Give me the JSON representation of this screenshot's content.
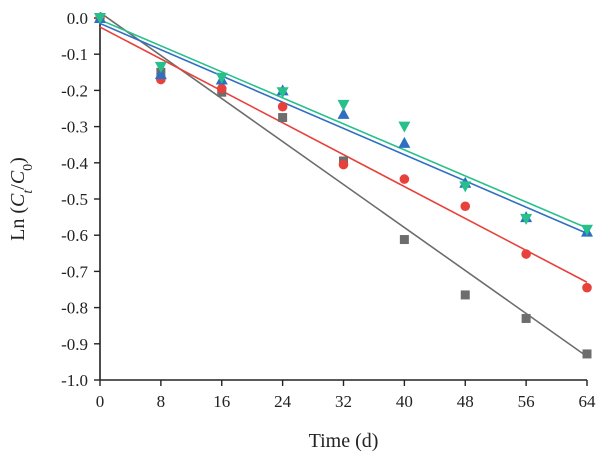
{
  "chart_data": {
    "type": "scatter",
    "title": "",
    "xlabel": "Time (d)",
    "ylabel": {
      "prefix": "Ln (",
      "c": "C",
      "t_sub": "t",
      "slash": "/",
      "c0": "C",
      "zero_sub": "0",
      "suffix": ")"
    },
    "xlim": [
      0,
      64
    ],
    "ylim": [
      -1.0,
      0.0
    ],
    "x_ticks": [
      0,
      8,
      16,
      24,
      32,
      40,
      48,
      56,
      64
    ],
    "x_tick_labels": [
      "0",
      "8",
      "16",
      "24",
      "32",
      "40",
      "48",
      "56",
      "64"
    ],
    "y_ticks": [
      0.0,
      -0.1,
      -0.2,
      -0.3,
      -0.4,
      -0.5,
      -0.6,
      -0.7,
      -0.8,
      -0.9,
      -1.0
    ],
    "y_tick_labels": [
      "0.0",
      "-0.1",
      "-0.2",
      "-0.3",
      "-0.4",
      "-0.5",
      "-0.6",
      "-0.7",
      "-0.8",
      "-0.9",
      "-1.0"
    ],
    "grid": false,
    "legend": "none",
    "series": [
      {
        "marker": "square",
        "color": "#6d6d6d",
        "x": [
          0,
          8,
          16,
          24,
          32,
          40,
          48,
          56,
          64
        ],
        "y": [
          0.0,
          -0.15,
          -0.205,
          -0.275,
          -0.395,
          -0.612,
          -0.765,
          -0.83,
          -0.928
        ],
        "fit": {
          "x": [
            0,
            64
          ],
          "y": [
            0.015,
            -0.935
          ]
        }
      },
      {
        "marker": "circle",
        "color": "#e8413c",
        "x": [
          0,
          8,
          16,
          24,
          32,
          40,
          48,
          56,
          64
        ],
        "y": [
          0.0,
          -0.17,
          -0.195,
          -0.245,
          -0.405,
          -0.445,
          -0.52,
          -0.652,
          -0.745
        ],
        "fit": {
          "x": [
            0,
            64
          ],
          "y": [
            -0.025,
            -0.73
          ]
        }
      },
      {
        "marker": "triangle-up",
        "color": "#2f6fc2",
        "x": [
          0,
          8,
          16,
          24,
          32,
          40,
          48,
          56,
          64
        ],
        "y": [
          0.0,
          -0.155,
          -0.17,
          -0.2,
          -0.265,
          -0.345,
          -0.455,
          -0.55,
          -0.59
        ],
        "fit": {
          "x": [
            0,
            64
          ],
          "y": [
            -0.015,
            -0.595
          ]
        }
      },
      {
        "marker": "triangle-down",
        "color": "#27c08a",
        "x": [
          0,
          8,
          16,
          24,
          32,
          40,
          48,
          56,
          64
        ],
        "y": [
          0.0,
          -0.135,
          -0.165,
          -0.205,
          -0.24,
          -0.3,
          -0.465,
          -0.555,
          -0.585
        ],
        "fit": {
          "x": [
            0,
            64
          ],
          "y": [
            -0.005,
            -0.58
          ]
        }
      }
    ]
  }
}
